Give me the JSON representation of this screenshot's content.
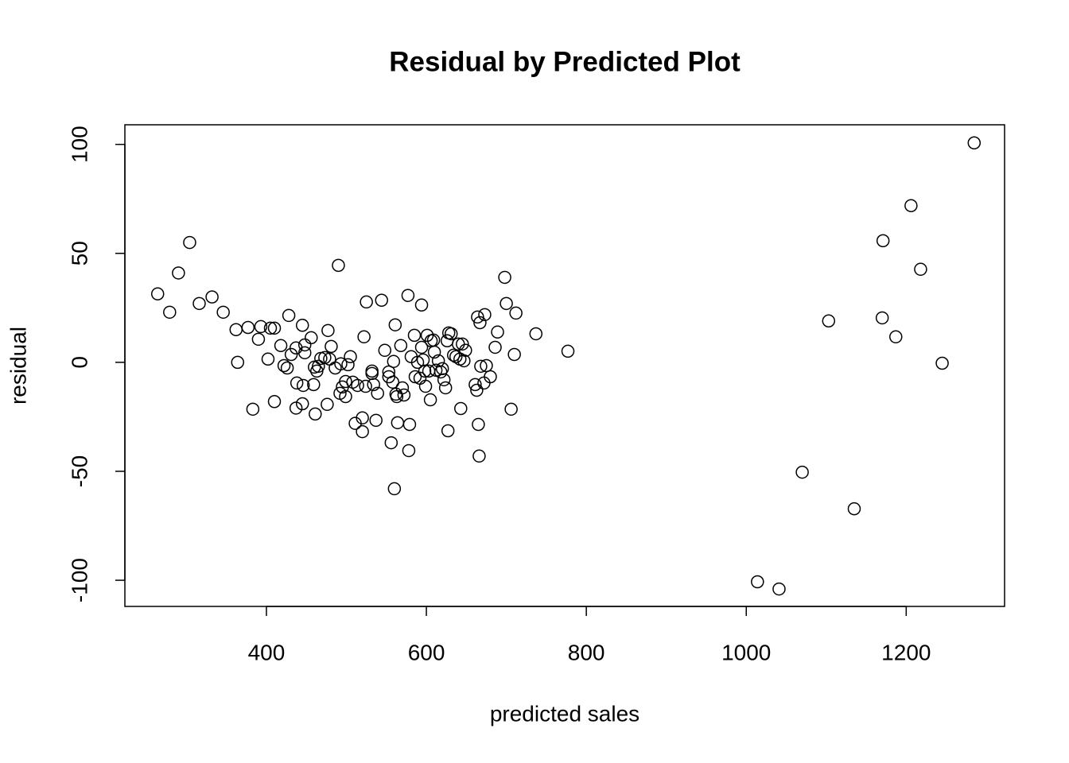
{
  "chart_data": {
    "type": "scatter",
    "title": "Residual by Predicted Plot",
    "x_label": "predicted sales",
    "y_label": "residual",
    "xlim": [
      223,
      1323
    ],
    "ylim": [
      -112,
      109
    ],
    "xticks": [
      400,
      600,
      800,
      1000,
      1200
    ],
    "yticks": [
      -100,
      -50,
      0,
      50,
      100
    ],
    "color": "#000000",
    "x": [
      264,
      279,
      290,
      304,
      316,
      332,
      346,
      362,
      364,
      377,
      383,
      390,
      393,
      402,
      405,
      410,
      410,
      418,
      422,
      426,
      428,
      431,
      437,
      438,
      437,
      445,
      446,
      445,
      448,
      448,
      456,
      459,
      461,
      460,
      463,
      465,
      468,
      473,
      476,
      477,
      481,
      479,
      486,
      490,
      493,
      492,
      495,
      499,
      499,
      502,
      505,
      508,
      511,
      514,
      520,
      520,
      522,
      524,
      525,
      532,
      532,
      534,
      537,
      539,
      544,
      548,
      553,
      553,
      556,
      558,
      559,
      560,
      561,
      562,
      563,
      564,
      568,
      570,
      572,
      577,
      578,
      579,
      581,
      585,
      586,
      589,
      592,
      594,
      594,
      596,
      598,
      599,
      601,
      603,
      605,
      606,
      609,
      610,
      612,
      615,
      618,
      620,
      622,
      624,
      626,
      627,
      628,
      631,
      634,
      637,
      640,
      642,
      643,
      645,
      647,
      649,
      661,
      663,
      664,
      665,
      666,
      667,
      668,
      672,
      673,
      675,
      680,
      686,
      689,
      698,
      700,
      706,
      710,
      712,
      737,
      777,
      1014,
      1041,
      1070,
      1103,
      1135,
      1170,
      1171,
      1187,
      1206,
      1218,
      1245,
      1285
    ],
    "y": [
      31.4,
      23,
      41,
      55,
      27,
      30,
      23,
      15,
      0,
      16,
      -21.5,
      10.6,
      16.4,
      1.5,
      15.7,
      15.7,
      -18,
      7.7,
      -1.5,
      -2.6,
      21.5,
      3.6,
      6.6,
      -9.5,
      -21,
      17,
      -10.6,
      -19,
      8,
      4.4,
      11.3,
      -10.2,
      -23.7,
      -2.2,
      -4,
      -1.8,
      1.8,
      2.2,
      -19.3,
      14.6,
      7.3,
      1.5,
      -2.6,
      44.5,
      -0.7,
      -14.2,
      -11.3,
      -8.8,
      -15.7,
      -1.1,
      2.6,
      -9.1,
      -28,
      -10.6,
      -25.5,
      -31.8,
      11.7,
      -11,
      27.7,
      -4,
      -5.1,
      -10.2,
      -26.6,
      -14.2,
      28.5,
      5.5,
      -6.6,
      -4.4,
      -36.9,
      -9.1,
      0.4,
      -58,
      17.2,
      -14.6,
      -15.7,
      -27.7,
      7.7,
      -11.7,
      -15,
      30.7,
      -40.5,
      -28.5,
      2.6,
      12.4,
      -6.6,
      0,
      -7.3,
      26.3,
      6.9,
      1.1,
      -4,
      -11,
      12.4,
      -4,
      -17.2,
      9.9,
      10.2,
      4.7,
      -3.6,
      0.7,
      -4.4,
      -2.9,
      -8,
      -11.7,
      9.9,
      -31.4,
      13.5,
      13.1,
      3.3,
      2.6,
      8.4,
      1.5,
      -21.2,
      8.4,
      0.7,
      5.5,
      -10.2,
      -12.8,
      20.8,
      -28.5,
      -43,
      18.2,
      -1.8,
      -9.5,
      21.9,
      -1.5,
      -6.6,
      6.9,
      13.9,
      39,
      27,
      -21.5,
      3.6,
      22.6,
      13.1,
      5.1,
      -100.7,
      -104,
      -50.4,
      19,
      -67.2,
      20.4,
      55.8,
      11.7,
      71.9,
      42.7,
      -0.4,
      100.7
    ]
  }
}
